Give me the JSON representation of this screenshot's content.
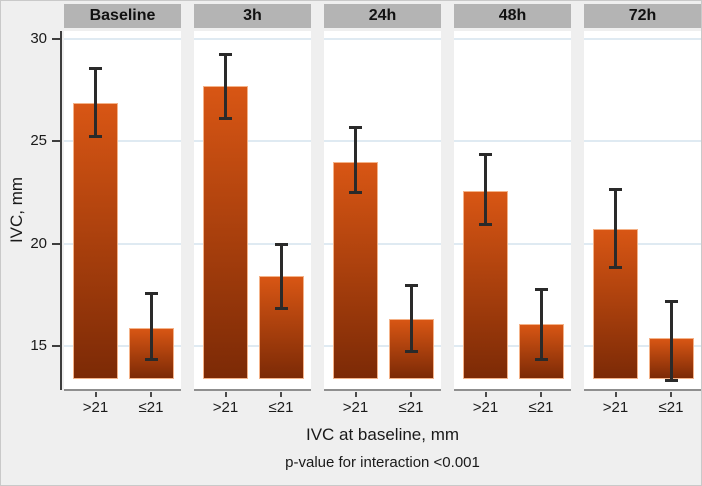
{
  "figure": {
    "background": "#efefef",
    "border_color": "#c9c9c9",
    "panel_header_bg": "#b4b4b4",
    "plot_bg": "#ffffff",
    "gridline_color": "#dfeaf2",
    "bar_gradient_top": "#d85614",
    "bar_gradient_bottom": "#7c2a06",
    "bar_border_color": "#f4b288",
    "error_bar_color": "#2a2a2a",
    "x_axis_color": "#8f8f8f",
    "y_axis_color": "#3d3d3d",
    "text_color": "#1a1a1a"
  },
  "chart_data": {
    "type": "bar",
    "title": "",
    "ylabel": "IVC, mm",
    "xlabel": "IVC at baseline, mm",
    "note": "p-value for interaction <0.001",
    "grid": true,
    "legend": "none",
    "error_bars": true,
    "yticks": [
      15,
      20,
      25,
      30
    ],
    "ylim": [
      12.9,
      30.4
    ],
    "bar_baseline": 13.4,
    "categories": [
      ">21",
      "≤21"
    ],
    "panels": [
      {
        "label": "Baseline",
        "bars": [
          {
            "category": ">21",
            "mean": 26.9,
            "ci_low": 25.2,
            "ci_high": 28.6
          },
          {
            "category": "≤21",
            "mean": 15.9,
            "ci_low": 14.3,
            "ci_high": 17.6
          }
        ]
      },
      {
        "label": "3h",
        "bars": [
          {
            "category": ">21",
            "mean": 27.7,
            "ci_low": 26.1,
            "ci_high": 29.3
          },
          {
            "category": "≤21",
            "mean": 18.4,
            "ci_low": 16.8,
            "ci_high": 20.0
          }
        ]
      },
      {
        "label": "24h",
        "bars": [
          {
            "category": ">21",
            "mean": 24.0,
            "ci_low": 22.5,
            "ci_high": 25.7
          },
          {
            "category": "≤21",
            "mean": 16.3,
            "ci_low": 14.7,
            "ci_high": 18.0
          }
        ]
      },
      {
        "label": "48h",
        "bars": [
          {
            "category": ">21",
            "mean": 22.6,
            "ci_low": 20.9,
            "ci_high": 24.4
          },
          {
            "category": "≤21",
            "mean": 16.1,
            "ci_low": 14.3,
            "ci_high": 17.8
          }
        ]
      },
      {
        "label": "72h",
        "bars": [
          {
            "category": ">21",
            "mean": 20.7,
            "ci_low": 18.8,
            "ci_high": 22.7
          },
          {
            "category": "≤21",
            "mean": 15.4,
            "ci_low": 13.3,
            "ci_high": 17.2
          }
        ]
      }
    ]
  }
}
